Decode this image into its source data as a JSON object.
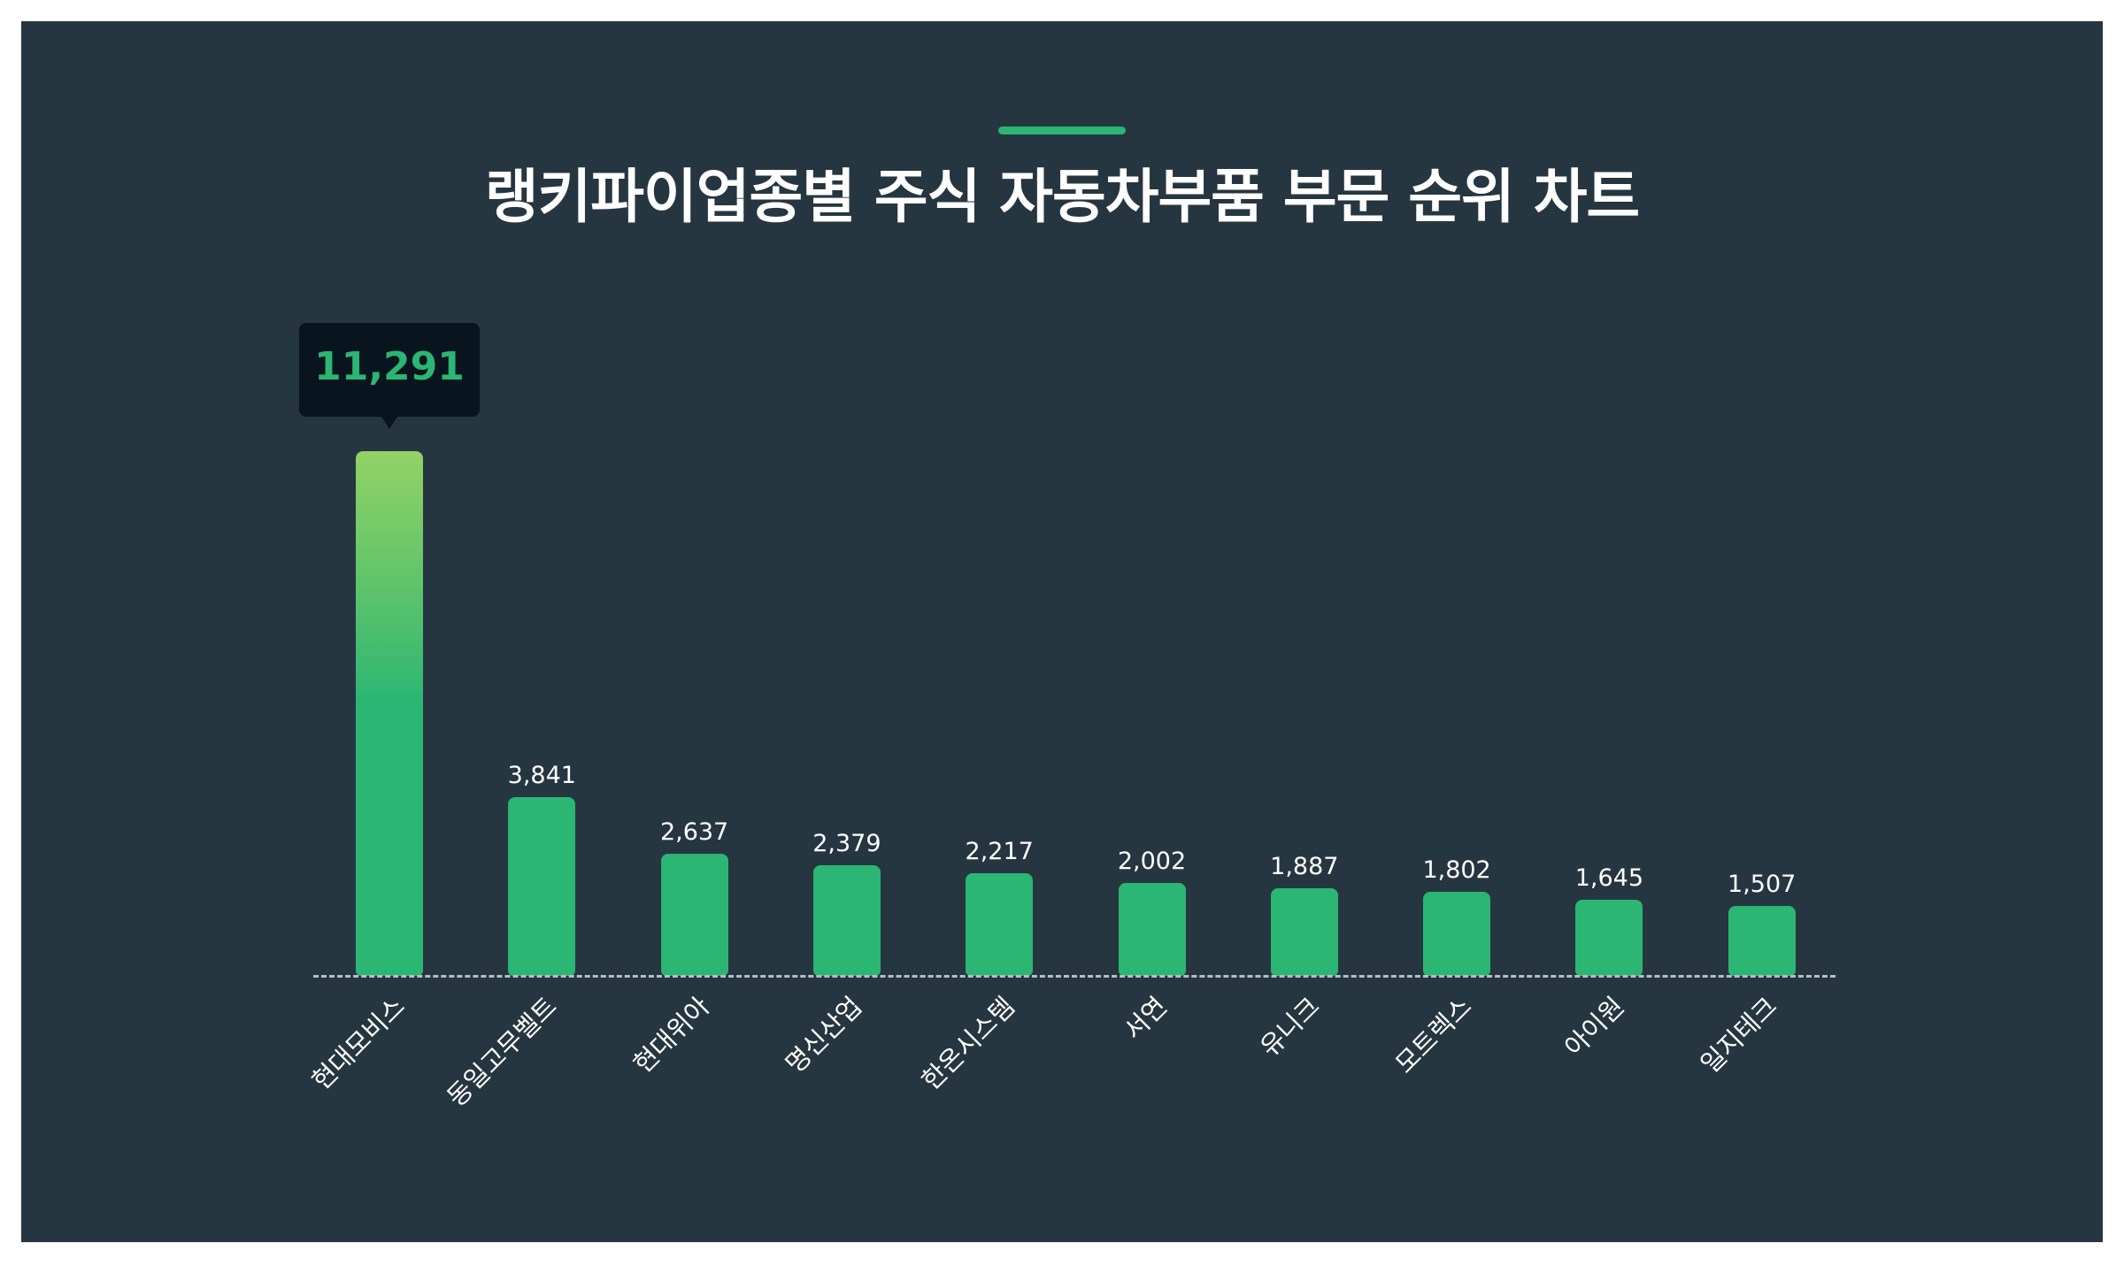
{
  "header": {
    "title": "랭키파이업종별 주식 자동차부품 부문 순위 차트"
  },
  "tooltip": {
    "value_label": "11,291"
  },
  "colors": {
    "background": "#263641",
    "bar": "#2bb673",
    "bar_top_highlight": "#93d266",
    "tooltip_bg": "#08141e",
    "accent": "#2bb673"
  },
  "bars": [
    {
      "label": "현대모비스",
      "value_label": "11,291"
    },
    {
      "label": "동일고무벨트",
      "value_label": "3,841"
    },
    {
      "label": "현대위아",
      "value_label": "2,637"
    },
    {
      "label": "명신산업",
      "value_label": "2,379"
    },
    {
      "label": "한온시스템",
      "value_label": "2,217"
    },
    {
      "label": "서연",
      "value_label": "2,002"
    },
    {
      "label": "유니크",
      "value_label": "1,887"
    },
    {
      "label": "모트렉스",
      "value_label": "1,802"
    },
    {
      "label": "아이원",
      "value_label": "1,645"
    },
    {
      "label": "일지테크",
      "value_label": "1,507"
    }
  ],
  "chart_data": {
    "type": "bar",
    "title": "랭키파이업종별 주식 자동차부품 부문 순위 차트",
    "categories": [
      "현대모비스",
      "동일고무벨트",
      "현대위아",
      "명신산업",
      "한온시스템",
      "서연",
      "유니크",
      "모트렉스",
      "아이원",
      "일지테크"
    ],
    "values": [
      11291,
      3841,
      2637,
      2379,
      2217,
      2002,
      1887,
      1802,
      1645,
      1507
    ],
    "xlabel": "",
    "ylabel": "",
    "ylim": [
      0,
      11291
    ],
    "grid": false,
    "legend": null,
    "annotations": [
      "11,291 (tooltip on top bar)"
    ]
  }
}
